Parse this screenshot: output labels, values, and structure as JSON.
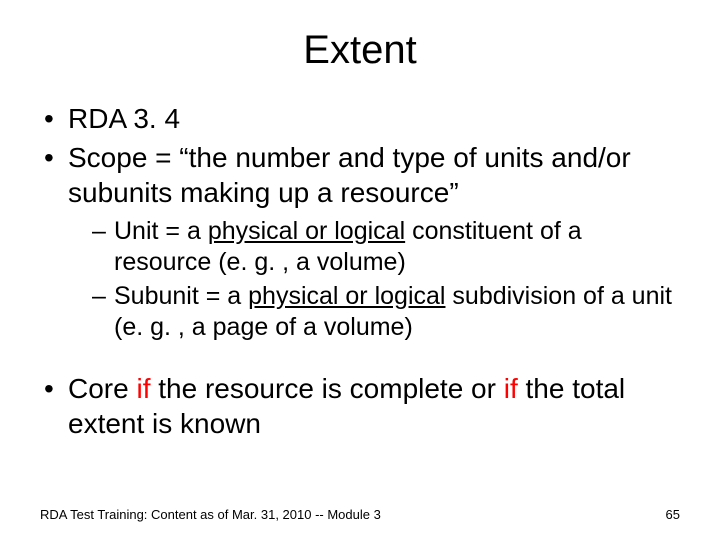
{
  "slide": {
    "title": "Extent",
    "title_fontsize": 40,
    "body_fontsize_l1": 28,
    "body_fontsize_l2": 25,
    "text_color": "#000000",
    "emphasis_color": "#ff0000",
    "background_color": "#ffffff",
    "bullets": [
      {
        "text": "RDA 3. 4"
      },
      {
        "text": "Scope = “the number and type of units and/or subunits making up a resource”",
        "sub": [
          {
            "prefix": "Unit = a ",
            "underlined": "physical or logical",
            "suffix": " constituent of a resource (e. g. , a volume)"
          },
          {
            "prefix": "Subunit = a ",
            "underlined": "physical or logical",
            "suffix": " subdivision of a unit (e. g. , a page of a volume)"
          }
        ]
      },
      {
        "pre": "Core ",
        "em1": "if",
        "mid": " the resource is complete or ",
        "em2": "if",
        "post": " the total extent is known",
        "emphasis": true
      }
    ],
    "footer": "RDA Test Training:  Content as of Mar. 31, 2010 -- Module 3",
    "page_number": "65"
  }
}
